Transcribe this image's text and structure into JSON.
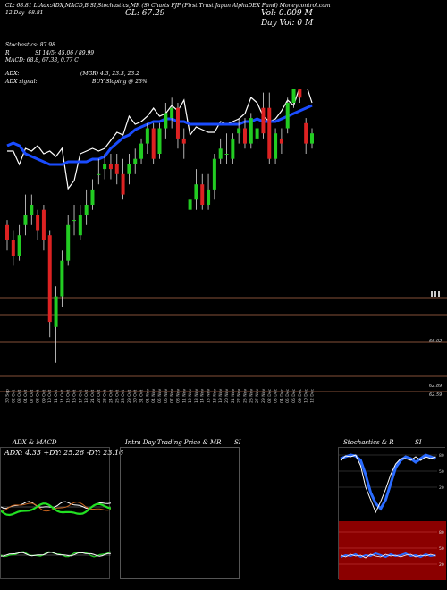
{
  "header": {
    "line1": "CL: 68.81 LtAdx:ADX,MACD,B SI,Stochastics,MR (S) Charts FJP (First Trust Japan AlphaDEX Fund) Moneycontrol.com",
    "date_label": "12 Day",
    "close_change": "-68.81",
    "cl_big": "CL: 67.29",
    "vol_big": "Vol: 0.009 M",
    "day_vol": "Day Vol: 0   M"
  },
  "indicators": {
    "stochastics": "Stochastics: 87.98",
    "si": "SI 14/5: 45.06 / 89.99",
    "r_label": "R",
    "macd": "MACD: 68.8,  67.33,  0.77 C",
    "adx": "ADX:",
    "adx_vals": "(MGR) 4.3,  23.3,  23.2",
    "adx_signal": "ADX  signal:",
    "buy_signal": "BUY Sloping @ 23%"
  },
  "price_levels": [
    "66.02",
    "62.89",
    "62.59"
  ],
  "xaxis_labels": [
    "30 Sep",
    "02 Oct",
    "03 Oct",
    "04 Oct",
    "07 Oct",
    "08 Oct",
    "09 Oct",
    "10 Oct",
    "11 Oct",
    "14 Oct",
    "15 Oct",
    "16 Oct",
    "17 Oct",
    "18 Oct",
    "21 Oct",
    "22 Oct",
    "23 Oct",
    "24 Oct",
    "25 Oct",
    "28 Oct",
    "29 Oct",
    "30 Oct",
    "31 Oct",
    "01 Nov",
    "04 Nov",
    "05 Nov",
    "06 Nov",
    "07 Nov",
    "08 Nov",
    "11 Nov",
    "12 Nov",
    "13 Nov",
    "14 Nov",
    "15 Nov",
    "18 Nov",
    "19 Nov",
    "20 Nov",
    "21 Nov",
    "22 Nov",
    "25 Nov",
    "26 Nov",
    "27 Nov",
    "29 Nov",
    "02 Dec",
    "03 Dec",
    "04 Dec",
    "05 Dec",
    "06 Dec",
    "09 Dec",
    "10 Dec",
    "12 Dec"
  ],
  "panels": {
    "adx_title": "ADX  & MACD",
    "adx_readout": "ADX: 4.35  +DY: 25.26  -DY: 23.16",
    "intraday_title": "Intra  Day Trading Price  & MR",
    "intraday_si": "SI",
    "stoch_title": "Stochastics & R",
    "stoch_si": "SI",
    "stoch_ticks": [
      "80",
      "50",
      "20"
    ],
    "si_ticks": [
      "80",
      "50",
      "20"
    ]
  },
  "colors": {
    "up": "#22cc22",
    "down": "#dd2222",
    "ma": "#1a4cff",
    "level_line": "#b06a4a",
    "si_bg": "#8b0000",
    "stoch_line": "#2a6bff"
  },
  "chart_data": {
    "type": "candlestick",
    "x": [
      "30 Sep",
      "02 Oct",
      "03 Oct",
      "04 Oct",
      "07 Oct",
      "08 Oct",
      "09 Oct",
      "10 Oct",
      "11 Oct",
      "14 Oct",
      "15 Oct",
      "16 Oct",
      "17 Oct",
      "18 Oct",
      "21 Oct",
      "22 Oct",
      "23 Oct",
      "24 Oct",
      "25 Oct",
      "28 Oct",
      "29 Oct",
      "30 Oct",
      "31 Oct",
      "01 Nov",
      "04 Nov",
      "05 Nov",
      "06 Nov",
      "07 Nov",
      "08 Nov",
      "11 Nov",
      "12 Nov",
      "13 Nov",
      "14 Nov",
      "15 Nov",
      "18 Nov",
      "19 Nov",
      "20 Nov",
      "21 Nov",
      "22 Nov",
      "25 Nov",
      "26 Nov",
      "27 Nov",
      "29 Nov",
      "02 Dec",
      "03 Dec",
      "04 Dec",
      "05 Dec",
      "06 Dec",
      "09 Dec",
      "10 Dec",
      "12 Dec"
    ],
    "open": [
      65.6,
      65.3,
      65.0,
      65.6,
      65.8,
      65.8,
      65.9,
      65.4,
      63.6,
      64.2,
      64.9,
      65.7,
      65.4,
      65.8,
      66.0,
      66.6,
      66.7,
      66.8,
      66.8,
      66.6,
      66.6,
      66.8,
      66.9,
      67.2,
      67.5,
      67.0,
      67.5,
      67.7,
      67.9,
      67.3,
      65.9,
      66.1,
      66.4,
      66.0,
      66.3,
      66.9,
      67.0,
      66.9,
      67.4,
      67.5,
      67.2,
      67.3,
      67.9,
      67.9,
      66.9,
      67.3,
      67.5,
      68.0,
      68.3,
      67.6,
      67.2
    ],
    "close": [
      65.3,
      65.0,
      65.4,
      65.8,
      66.0,
      65.5,
      65.3,
      63.7,
      64.2,
      64.9,
      65.6,
      65.7,
      65.8,
      66.0,
      66.3,
      66.6,
      66.8,
      66.7,
      66.6,
      66.2,
      66.8,
      66.9,
      67.2,
      67.5,
      66.9,
      67.5,
      67.8,
      67.9,
      67.3,
      67.2,
      66.1,
      66.4,
      66.0,
      66.3,
      66.9,
      67.1,
      67.0,
      67.3,
      67.5,
      67.2,
      67.7,
      67.5,
      67.4,
      66.9,
      67.4,
      67.2,
      68.0,
      68.6,
      68.1,
      67.2,
      67.4
    ],
    "high": [
      65.7,
      65.5,
      65.6,
      66.2,
      66.2,
      65.9,
      66.0,
      65.5,
      64.4,
      65.1,
      65.8,
      66.0,
      66.0,
      66.3,
      66.5,
      66.9,
      67.0,
      67.0,
      67.0,
      66.9,
      67.0,
      67.1,
      67.3,
      67.6,
      67.6,
      67.6,
      68.0,
      68.1,
      68.0,
      67.5,
      66.4,
      66.7,
      66.6,
      66.6,
      67.0,
      67.3,
      67.4,
      67.4,
      67.7,
      67.7,
      67.8,
      67.6,
      68.2,
      68.2,
      67.5,
      67.5,
      68.1,
      68.7,
      68.4,
      67.7,
      67.5
    ],
    "low": [
      65.1,
      64.8,
      64.9,
      65.4,
      65.6,
      65.3,
      65.1,
      63.4,
      62.9,
      64.0,
      64.8,
      65.4,
      65.3,
      65.6,
      65.9,
      66.4,
      66.5,
      66.5,
      66.4,
      66.1,
      66.4,
      66.6,
      66.8,
      67.0,
      66.8,
      66.9,
      67.3,
      67.5,
      67.1,
      66.9,
      65.8,
      65.9,
      65.9,
      65.9,
      66.1,
      66.8,
      66.8,
      66.8,
      67.2,
      67.1,
      67.1,
      67.2,
      67.3,
      66.8,
      66.8,
      67.0,
      67.4,
      67.9,
      68.0,
      67.0,
      67.1
    ],
    "ma_line": [
      68.5,
      68.6,
      68.5,
      68.2,
      68.1,
      68.0,
      67.9,
      67.8,
      67.8,
      67.8,
      67.9,
      67.9,
      67.9,
      67.9,
      68.0,
      68.0,
      68.1,
      68.4,
      68.6,
      68.8,
      68.9,
      69.1,
      69.2,
      69.3,
      69.4,
      69.4,
      69.5,
      69.5,
      69.4,
      69.4,
      69.3,
      69.3,
      69.3,
      69.3,
      69.3,
      69.3,
      69.3,
      69.3,
      69.3,
      69.4,
      69.4,
      69.5,
      69.4,
      69.4,
      69.4,
      69.5,
      69.6,
      69.7,
      69.8,
      69.9,
      70.0
    ],
    "price_line": [
      68.3,
      68.3,
      67.8,
      68.4,
      68.3,
      68.5,
      68.2,
      68.3,
      68.1,
      68.4,
      66.9,
      67.2,
      68.2,
      68.3,
      68.4,
      68.3,
      68.4,
      68.7,
      69.0,
      68.9,
      69.6,
      69.3,
      69.4,
      69.6,
      69.9,
      69.6,
      69.7,
      70.0,
      69.8,
      70.2,
      68.9,
      69.2,
      69.1,
      69.0,
      69.0,
      69.4,
      69.3,
      69.4,
      69.5,
      69.7,
      70.3,
      70.1,
      69.6,
      69.4,
      69.5,
      69.8,
      70.2,
      70.0,
      70.7,
      70.8,
      70.1
    ]
  }
}
